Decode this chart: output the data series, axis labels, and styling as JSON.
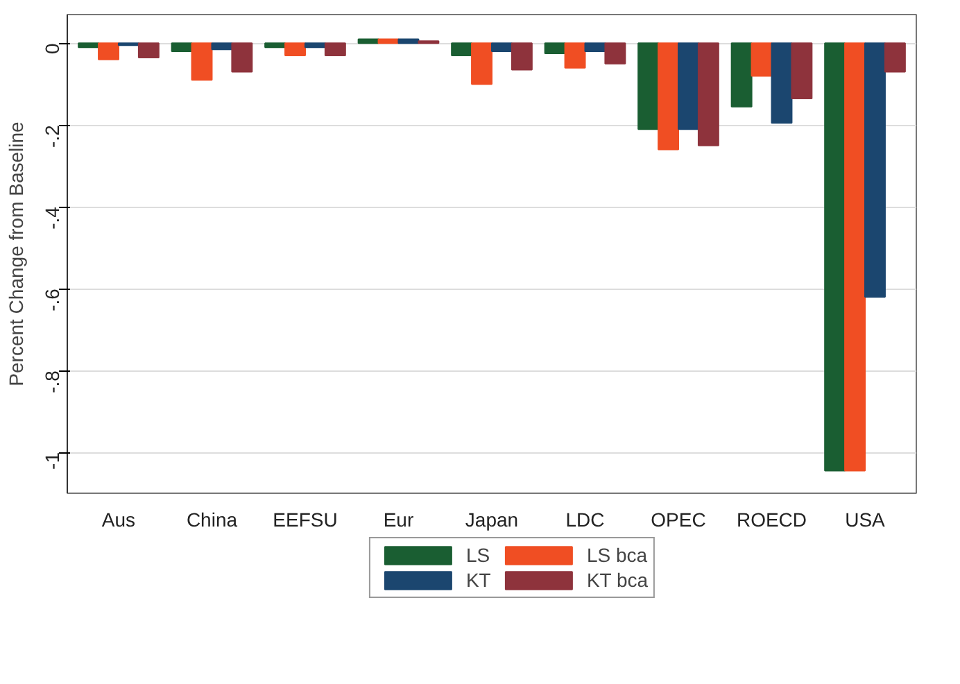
{
  "chart_data": {
    "type": "bar",
    "ylabel": "Percent Change from Baseline",
    "categories": [
      "Aus",
      "China",
      "EEFSU",
      "Eur",
      "Japan",
      "LDC",
      "OPEC",
      "ROECD",
      "USA"
    ],
    "series": [
      {
        "name": "LS",
        "color": "#1a5e32",
        "values": [
          -0.01,
          -0.02,
          -0.01,
          0.01,
          -0.03,
          -0.025,
          -0.21,
          -0.155,
          -1.045
        ]
      },
      {
        "name": "LS bca",
        "color": "#f04e23",
        "values": [
          -0.04,
          -0.09,
          -0.03,
          0.01,
          -0.1,
          -0.06,
          -0.26,
          -0.08,
          -1.045
        ]
      },
      {
        "name": "KT",
        "color": "#1b466f",
        "values": [
          -0.005,
          -0.015,
          -0.01,
          0.01,
          -0.02,
          -0.02,
          -0.21,
          -0.195,
          -0.62
        ]
      },
      {
        "name": "KT bca",
        "color": "#8e333c",
        "values": [
          -0.035,
          -0.07,
          -0.03,
          0.005,
          -0.065,
          -0.05,
          -0.25,
          -0.135,
          -0.07
        ]
      }
    ],
    "ylim": [
      -1.1,
      0.07
    ],
    "yticks": [
      0,
      {
        "value": -0.2,
        "label": "-.2"
      },
      {
        "value": -0.4,
        "label": "-.4"
      },
      {
        "value": -0.6,
        "label": "-.6"
      },
      {
        "value": -0.8,
        "label": "-.8"
      },
      -1
    ],
    "grid": "y",
    "legend": "bottom"
  }
}
